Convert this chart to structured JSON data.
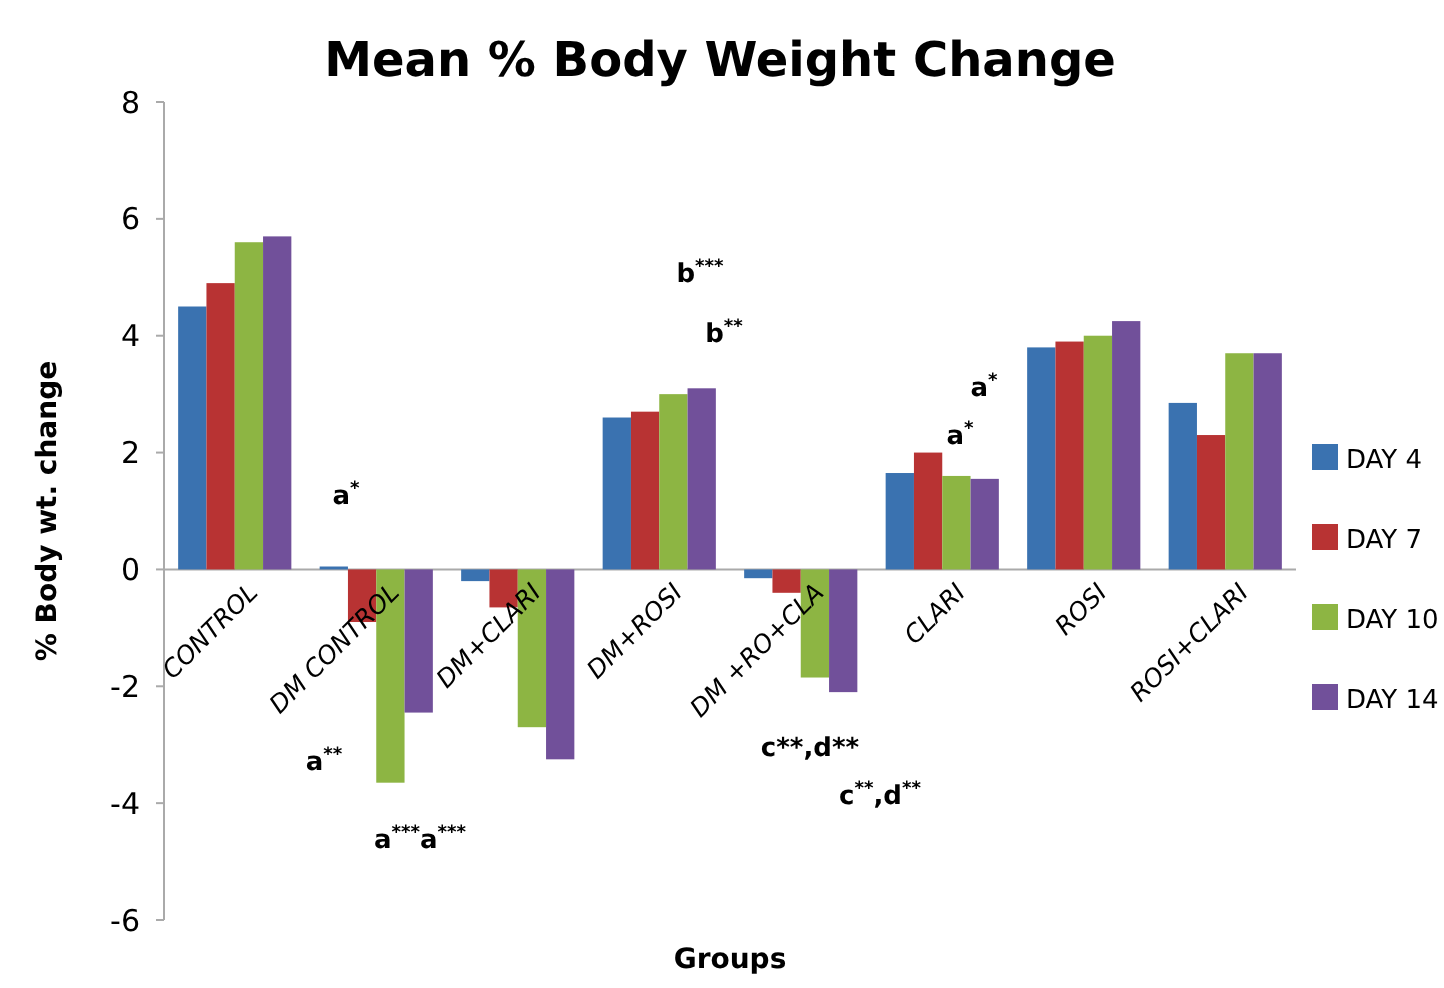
{
  "chart_data": {
    "type": "bar",
    "title": "Mean % Body Weight Change",
    "xlabel": "Groups",
    "ylabel": "% Body wt. change",
    "categories": [
      "CONTROL",
      "DM CONTROL",
      "DM+CLARI",
      "DM+ROSI",
      "DM +RO+CLA",
      "CLARI",
      "ROSI",
      "ROSI+CLARI"
    ],
    "series": [
      {
        "name": "DAY 4",
        "color": "#3a72b0",
        "values": [
          4.5,
          0.05,
          -0.2,
          2.6,
          -0.15,
          1.65,
          3.8,
          2.85
        ]
      },
      {
        "name": "DAY 7",
        "color": "#b83333",
        "values": [
          4.9,
          -0.9,
          -0.65,
          2.7,
          -0.4,
          2.0,
          3.9,
          2.3
        ]
      },
      {
        "name": "DAY 10",
        "color": "#8db543",
        "values": [
          5.6,
          -3.65,
          -2.7,
          3.0,
          -1.85,
          1.6,
          4.0,
          3.7
        ]
      },
      {
        "name": "DAY 14",
        "color": "#71509a",
        "values": [
          5.7,
          -2.45,
          -3.25,
          3.1,
          -2.1,
          1.55,
          4.25,
          3.7
        ]
      }
    ],
    "ylim": [
      -6,
      8
    ],
    "yticks": [
      -6,
      -4,
      -2,
      0,
      2,
      4,
      6,
      8
    ],
    "grid": false,
    "legend": "right",
    "annotations": [
      "a$^{*}$",
      "a$^{**}$",
      "a$^{***}$a$^{***}$",
      "b$^{***}$",
      "b$^{**}$",
      "c**,d**",
      "c$^{**}$,d$^{**}$",
      "a$^{*}$",
      "a$^{*}$"
    ]
  }
}
